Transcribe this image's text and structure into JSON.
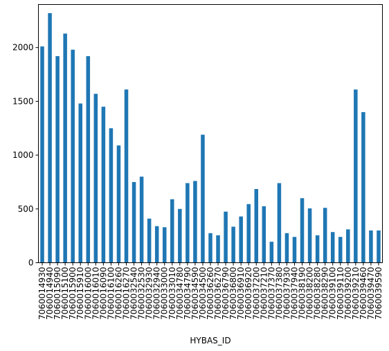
{
  "chart_data": {
    "type": "bar",
    "xlabel": "HYBAS_ID",
    "ylabel": "",
    "ylim": [
      0,
      2400
    ],
    "yticks": [
      0,
      500,
      1000,
      1500,
      2000
    ],
    "grid": false,
    "bar_color": "#1f77b4",
    "categories": [
      "7060014930",
      "7060014940",
      "7060015090",
      "7060015100",
      "7060015900",
      "7060015910",
      "7060016000",
      "7060016010",
      "7060016090",
      "7060016100",
      "7060016260",
      "7060016270",
      "7060032540",
      "7060032530",
      "7060032930",
      "7060032940",
      "7060033000",
      "7060033010",
      "7060034780",
      "7060034790",
      "7060034590",
      "7060034500",
      "7060036260",
      "7060036270",
      "7060036790",
      "7060036800",
      "7060036910",
      "7060036920",
      "7060037200",
      "7060037210",
      "7060037370",
      "7060037380",
      "7060037930",
      "7060037940",
      "7060038190",
      "7060038200",
      "7060038280",
      "7060038290",
      "7060039100",
      "7060039110",
      "7060039200",
      "7060039210",
      "7060039460",
      "7060039470",
      "7060039590"
    ],
    "values": [
      2010,
      2320,
      1920,
      2130,
      1980,
      1480,
      1920,
      1570,
      1450,
      1250,
      1090,
      1610,
      750,
      800,
      410,
      340,
      330,
      590,
      500,
      740,
      760,
      1190,
      275,
      255,
      475,
      335,
      430,
      545,
      685,
      525,
      195,
      740,
      275,
      240,
      600,
      505,
      255,
      510,
      285,
      240,
      310,
      1610,
      1400,
      300,
      300
    ]
  }
}
